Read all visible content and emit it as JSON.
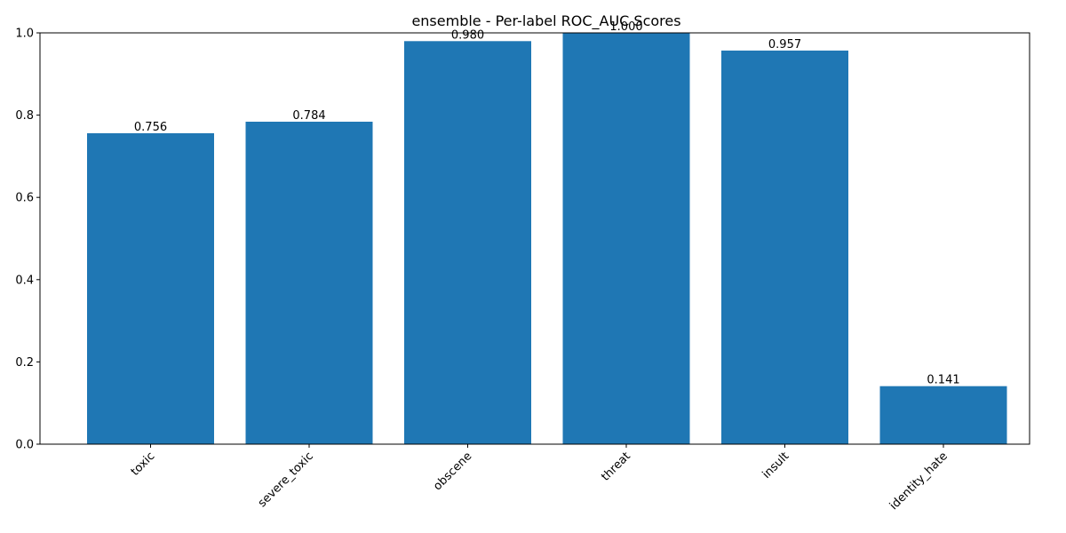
{
  "chart_data": {
    "type": "bar",
    "title": "ensemble - Per-label ROC_AUC Scores",
    "xlabel": "",
    "ylabel": "",
    "categories": [
      "toxic",
      "severe_toxic",
      "obscene",
      "threat",
      "insult",
      "identity_hate"
    ],
    "values": [
      0.756,
      0.784,
      0.98,
      1.0,
      0.957,
      0.141
    ],
    "value_labels": [
      "0.756",
      "0.784",
      "0.980",
      "1.000",
      "0.957",
      "0.141"
    ],
    "ylim": [
      0,
      1.0
    ],
    "yticks": [
      0.0,
      0.2,
      0.4,
      0.6,
      0.8,
      1.0
    ],
    "ytick_labels": [
      "0.0",
      "0.2",
      "0.4",
      "0.6",
      "0.8",
      "1.0"
    ],
    "grid": false,
    "legend": "none",
    "bar_color": "#1f77b4",
    "xtick_rotation_deg": 45
  }
}
